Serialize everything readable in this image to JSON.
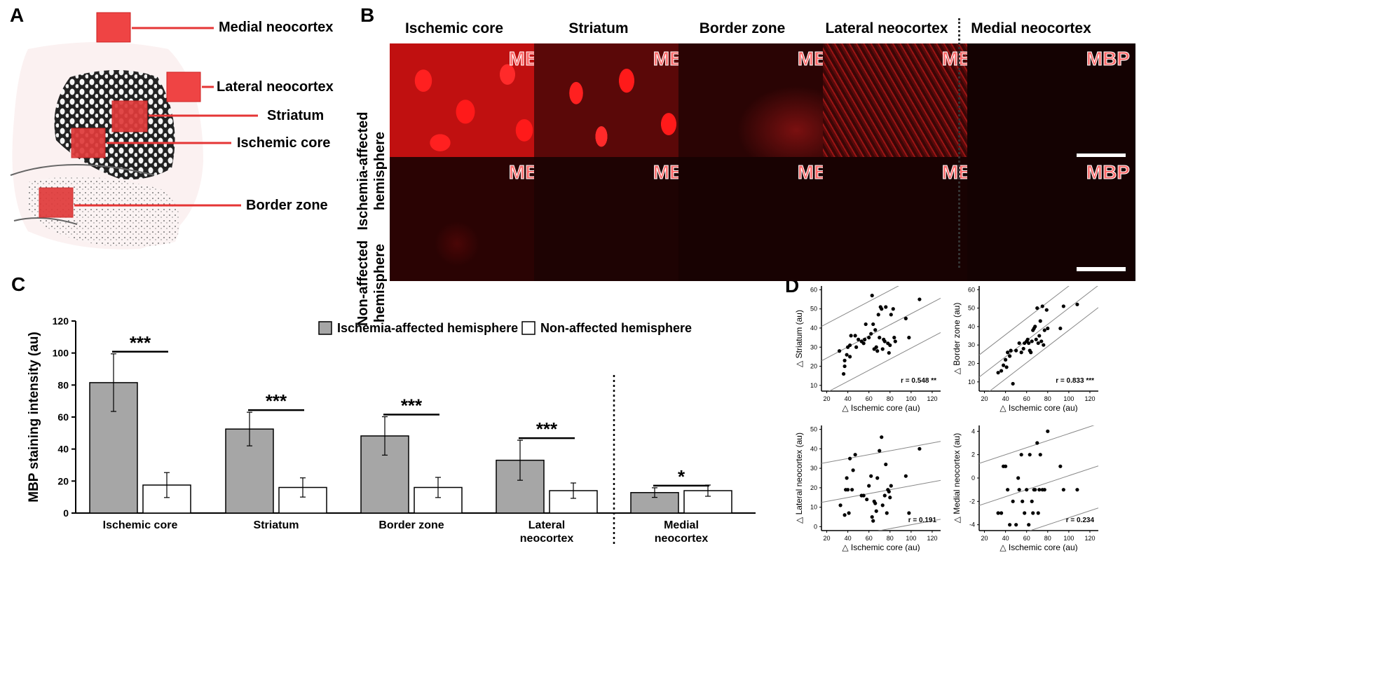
{
  "panels": {
    "a": "A",
    "b": "B",
    "c": "C",
    "d": "D"
  },
  "panel_a": {
    "labels": [
      "Medial neocortex",
      "Lateral neocortex",
      "Striatum",
      "Ischemic core",
      "Border zone"
    ]
  },
  "panel_b": {
    "columns": [
      "Ischemic core",
      "Striatum",
      "Border zone",
      "Lateral neocortex",
      "Medial neocortex"
    ],
    "rows": [
      "Ischemia-affected hemisphere",
      "Non-affected hemisphere"
    ],
    "stain_label": "MBP"
  },
  "chart_data": [
    {
      "type": "bar",
      "ylabel": "MBP staining intensity (au)",
      "ylim": [
        0,
        120
      ],
      "yticks": [
        "0",
        "20",
        "40",
        "60",
        "80",
        "100",
        "120"
      ],
      "categories": [
        "Ischemic core",
        "Striatum",
        "Border zone",
        "Lateral neocortex",
        "Medial neocortex"
      ],
      "series": [
        {
          "name": "Ischemia-affected hemisphere",
          "color": "#a6a6a6",
          "values": [
            81.5,
            52.5,
            48.2,
            33.0,
            12.8
          ],
          "errors": [
            18.0,
            10.5,
            12.0,
            12.5,
            3.0
          ]
        },
        {
          "name": "Non-affected hemisphere",
          "color": "#ffffff",
          "values": [
            17.5,
            16.0,
            16.0,
            14.0,
            14.0
          ],
          "errors": [
            7.8,
            6.0,
            6.3,
            4.8,
            3.5
          ]
        }
      ],
      "significance": [
        "***",
        "***",
        "***",
        "***",
        "*"
      ]
    },
    {
      "type": "scatter",
      "xlabel": "△ Ischemic core (au)",
      "ylabel": "△ Striatum (au)",
      "xticks": [
        "20",
        "40",
        "60",
        "80",
        "100",
        "120"
      ],
      "yticks": [
        "10",
        "20",
        "30",
        "40",
        "50",
        "60"
      ],
      "xlim": [
        15,
        128
      ],
      "ylim": [
        7,
        62
      ],
      "fit": {
        "slope": 0.29,
        "intercept": 18.5,
        "band": 18
      },
      "r_label": "r = 0.548 **",
      "points": [
        [
          32,
          28
        ],
        [
          36,
          16
        ],
        [
          37,
          20
        ],
        [
          37,
          23
        ],
        [
          39,
          26
        ],
        [
          40,
          30
        ],
        [
          42,
          31
        ],
        [
          42,
          25
        ],
        [
          43,
          36
        ],
        [
          47,
          36
        ],
        [
          48,
          30
        ],
        [
          50,
          34
        ],
        [
          53,
          33
        ],
        [
          55,
          32
        ],
        [
          56,
          34
        ],
        [
          57,
          42
        ],
        [
          60,
          35
        ],
        [
          62,
          37
        ],
        [
          63,
          57
        ],
        [
          64,
          42
        ],
        [
          65,
          29
        ],
        [
          66,
          39
        ],
        [
          67,
          30
        ],
        [
          68,
          28
        ],
        [
          69,
          47
        ],
        [
          70,
          35
        ],
        [
          71,
          51
        ],
        [
          72,
          50
        ],
        [
          73,
          29
        ],
        [
          74,
          34
        ],
        [
          75,
          33
        ],
        [
          76,
          51
        ],
        [
          78,
          32
        ],
        [
          79,
          27
        ],
        [
          80,
          31
        ],
        [
          81,
          47
        ],
        [
          83,
          50
        ],
        [
          84,
          35
        ],
        [
          85,
          33
        ],
        [
          95,
          45
        ],
        [
          98,
          35
        ],
        [
          108,
          55
        ]
      ]
    },
    {
      "type": "scatter",
      "xlabel": "△ Ischemic core (au)",
      "ylabel": "△ Border zone (au)",
      "xticks": [
        "20",
        "40",
        "60",
        "80",
        "100",
        "120"
      ],
      "yticks": [
        "10",
        "20",
        "30",
        "40",
        "50",
        "60"
      ],
      "xlim": [
        15,
        128
      ],
      "ylim": [
        5,
        62
      ],
      "fit": {
        "slope": 0.44,
        "intercept": 6,
        "band": 12
      },
      "r_label": "r = 0.833 ***",
      "points": [
        [
          33,
          15
        ],
        [
          36,
          16
        ],
        [
          38,
          19
        ],
        [
          40,
          22
        ],
        [
          41,
          18
        ],
        [
          42,
          26
        ],
        [
          44,
          24
        ],
        [
          45,
          27
        ],
        [
          47,
          9
        ],
        [
          50,
          27
        ],
        [
          53,
          31
        ],
        [
          55,
          26
        ],
        [
          57,
          28
        ],
        [
          58,
          31
        ],
        [
          60,
          32
        ],
        [
          61,
          33
        ],
        [
          62,
          31
        ],
        [
          63,
          27
        ],
        [
          64,
          26
        ],
        [
          65,
          32
        ],
        [
          66,
          38
        ],
        [
          67,
          39
        ],
        [
          68,
          40
        ],
        [
          69,
          33
        ],
        [
          70,
          50
        ],
        [
          71,
          31
        ],
        [
          72,
          35
        ],
        [
          73,
          43
        ],
        [
          74,
          32
        ],
        [
          75,
          51
        ],
        [
          76,
          30
        ],
        [
          77,
          38
        ],
        [
          79,
          49
        ],
        [
          80,
          39
        ],
        [
          92,
          39
        ],
        [
          95,
          51
        ],
        [
          108,
          52
        ]
      ]
    },
    {
      "type": "scatter",
      "xlabel": "△ Ischemic core (au)",
      "ylabel": "△ Lateral neocortex (au)",
      "xticks": [
        "20",
        "40",
        "60",
        "80",
        "100",
        "120"
      ],
      "yticks": [
        "0",
        "10",
        "20",
        "30",
        "40",
        "50"
      ],
      "xlim": [
        15,
        128
      ],
      "ylim": [
        -2,
        52
      ],
      "fit": {
        "slope": 0.1,
        "intercept": 11,
        "band": 20
      },
      "r_label": "r = 0.191",
      "points": [
        [
          33,
          11
        ],
        [
          37,
          6
        ],
        [
          38,
          19
        ],
        [
          39,
          25
        ],
        [
          40,
          19
        ],
        [
          41,
          7
        ],
        [
          42,
          35
        ],
        [
          44,
          19
        ],
        [
          45,
          29
        ],
        [
          47,
          37
        ],
        [
          53,
          16
        ],
        [
          55,
          16
        ],
        [
          58,
          14
        ],
        [
          60,
          21
        ],
        [
          62,
          26
        ],
        [
          63,
          5
        ],
        [
          64,
          3
        ],
        [
          65,
          13
        ],
        [
          66,
          12
        ],
        [
          67,
          8
        ],
        [
          68,
          25
        ],
        [
          70,
          39
        ],
        [
          72,
          46
        ],
        [
          73,
          11
        ],
        [
          75,
          16
        ],
        [
          76,
          32
        ],
        [
          77,
          7
        ],
        [
          78,
          19
        ],
        [
          79,
          18
        ],
        [
          80,
          15
        ],
        [
          81,
          21
        ],
        [
          95,
          26
        ],
        [
          98,
          7
        ],
        [
          108,
          40
        ]
      ]
    },
    {
      "type": "scatter",
      "xlabel": "△ Ischemic core (au)",
      "ylabel": "△ Medial neocortex (au)",
      "xticks": [
        "20",
        "40",
        "60",
        "80",
        "100",
        "120"
      ],
      "yticks": [
        "-4",
        "-2",
        "0",
        "2",
        "4"
      ],
      "xlim": [
        15,
        128
      ],
      "ylim": [
        -4.5,
        4.5
      ],
      "fit": {
        "slope": 0.03,
        "intercept": -2.8,
        "band": 3.6
      },
      "r_label": "r = 0.234",
      "points": [
        [
          33,
          -3
        ],
        [
          36,
          -3
        ],
        [
          38,
          1
        ],
        [
          40,
          1
        ],
        [
          42,
          -1
        ],
        [
          44,
          -4
        ],
        [
          47,
          -2
        ],
        [
          50,
          -4
        ],
        [
          52,
          0
        ],
        [
          53,
          -1
        ],
        [
          55,
          2
        ],
        [
          56,
          -2
        ],
        [
          58,
          -3
        ],
        [
          60,
          -1
        ],
        [
          62,
          -4
        ],
        [
          63,
          2
        ],
        [
          65,
          -2
        ],
        [
          66,
          -3
        ],
        [
          67,
          -1
        ],
        [
          68,
          -1
        ],
        [
          70,
          3
        ],
        [
          71,
          -3
        ],
        [
          72,
          -1
        ],
        [
          73,
          2
        ],
        [
          75,
          -1
        ],
        [
          77,
          -1
        ],
        [
          80,
          4
        ],
        [
          92,
          1
        ],
        [
          95,
          -1
        ],
        [
          108,
          -1
        ]
      ]
    }
  ]
}
